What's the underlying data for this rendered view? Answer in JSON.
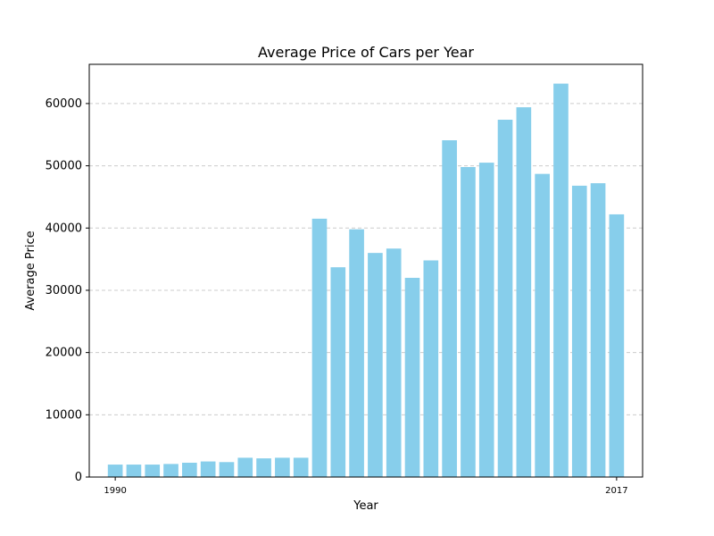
{
  "chart_data": {
    "type": "bar",
    "title": "Average Price of Cars per Year",
    "xlabel": "Year",
    "ylabel": "Average Price",
    "x": [
      1990,
      1991,
      1992,
      1993,
      1994,
      1995,
      1996,
      1997,
      1998,
      1999,
      2000,
      2001,
      2002,
      2003,
      2004,
      2005,
      2006,
      2007,
      2008,
      2009,
      2010,
      2011,
      2012,
      2013,
      2014,
      2015,
      2016,
      2017
    ],
    "values": [
      2000,
      2000,
      2000,
      2100,
      2300,
      2500,
      2400,
      3100,
      3000,
      3100,
      3100,
      41500,
      33700,
      39800,
      36000,
      36700,
      32000,
      34800,
      54100,
      49800,
      50500,
      57400,
      59400,
      48700,
      63200,
      46800,
      47200,
      42200
    ],
    "xtick_labels": [
      "1990",
      "2017"
    ],
    "yticks": [
      0,
      10000,
      20000,
      30000,
      40000,
      50000,
      60000
    ],
    "ylim": [
      0,
      66300
    ],
    "grid": "y-dashed",
    "bar_color": "#87ceeb"
  }
}
